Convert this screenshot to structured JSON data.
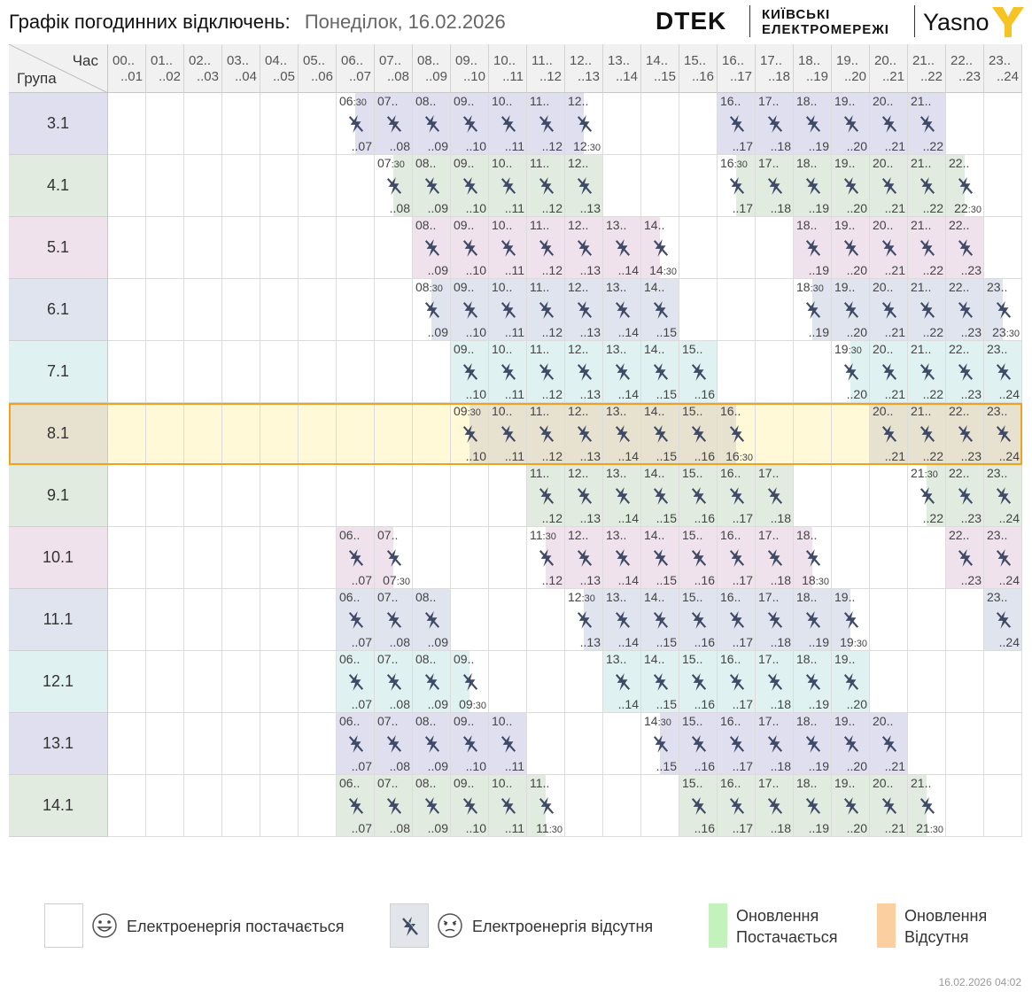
{
  "header": {
    "title": "Графік погодинних відключень:",
    "date": "Понеділок, 16.02.2026"
  },
  "logos": {
    "dtek": "DTEK",
    "kyiv_line1": "КИЇВСЬКІ",
    "kyiv_line2": "ЕЛЕКТРОМЕРЕЖІ",
    "yasno": "Yasno"
  },
  "table": {
    "corner_hour": "Час",
    "corner_group": "Група",
    "hours": [
      {
        "a": "00..",
        "b": "..01"
      },
      {
        "a": "01..",
        "b": "..02"
      },
      {
        "a": "02..",
        "b": "..03"
      },
      {
        "a": "03..",
        "b": "..04"
      },
      {
        "a": "04..",
        "b": "..05"
      },
      {
        "a": "05..",
        "b": "..06"
      },
      {
        "a": "06..",
        "b": "..07"
      },
      {
        "a": "07..",
        "b": "..08"
      },
      {
        "a": "08..",
        "b": "..09"
      },
      {
        "a": "09..",
        "b": "..10"
      },
      {
        "a": "10..",
        "b": "..11"
      },
      {
        "a": "11..",
        "b": "..12"
      },
      {
        "a": "12..",
        "b": "..13"
      },
      {
        "a": "13..",
        "b": "..14"
      },
      {
        "a": "14..",
        "b": "..15"
      },
      {
        "a": "15..",
        "b": "..16"
      },
      {
        "a": "16..",
        "b": "..17"
      },
      {
        "a": "17..",
        "b": "..18"
      },
      {
        "a": "18..",
        "b": "..19"
      },
      {
        "a": "19..",
        "b": "..20"
      },
      {
        "a": "20..",
        "b": "..21"
      },
      {
        "a": "21..",
        "b": "..22"
      },
      {
        "a": "22..",
        "b": "..23"
      },
      {
        "a": "23..",
        "b": "..24"
      }
    ],
    "highlighted_group": "8.1",
    "rows": [
      {
        "group": "3.1",
        "color": "#e0dff0",
        "cells": [
          [
            6,
            "late"
          ],
          [
            7,
            "full"
          ],
          [
            8,
            "full"
          ],
          [
            9,
            "full"
          ],
          [
            10,
            "full"
          ],
          [
            11,
            "full"
          ],
          [
            12,
            "early"
          ],
          [
            16,
            "full"
          ],
          [
            17,
            "full"
          ],
          [
            18,
            "full"
          ],
          [
            19,
            "full"
          ],
          [
            20,
            "full"
          ],
          [
            21,
            "full"
          ]
        ]
      },
      {
        "group": "4.1",
        "color": "#e1ebdf",
        "cells": [
          [
            7,
            "late"
          ],
          [
            8,
            "full"
          ],
          [
            9,
            "full"
          ],
          [
            10,
            "full"
          ],
          [
            11,
            "full"
          ],
          [
            12,
            "full"
          ],
          [
            16,
            "late"
          ],
          [
            17,
            "full"
          ],
          [
            18,
            "full"
          ],
          [
            19,
            "full"
          ],
          [
            20,
            "full"
          ],
          [
            21,
            "full"
          ],
          [
            22,
            "early"
          ]
        ]
      },
      {
        "group": "5.1",
        "color": "#efe2ec",
        "cells": [
          [
            8,
            "full"
          ],
          [
            9,
            "full"
          ],
          [
            10,
            "full"
          ],
          [
            11,
            "full"
          ],
          [
            12,
            "full"
          ],
          [
            13,
            "full"
          ],
          [
            14,
            "early"
          ],
          [
            18,
            "full"
          ],
          [
            19,
            "full"
          ],
          [
            20,
            "full"
          ],
          [
            21,
            "full"
          ],
          [
            22,
            "full"
          ]
        ]
      },
      {
        "group": "6.1",
        "color": "#e0e4ef",
        "cells": [
          [
            8,
            "late"
          ],
          [
            9,
            "full"
          ],
          [
            10,
            "full"
          ],
          [
            11,
            "full"
          ],
          [
            12,
            "full"
          ],
          [
            13,
            "full"
          ],
          [
            14,
            "full"
          ],
          [
            18,
            "late"
          ],
          [
            19,
            "full"
          ],
          [
            20,
            "full"
          ],
          [
            21,
            "full"
          ],
          [
            22,
            "full"
          ],
          [
            23,
            "early"
          ]
        ]
      },
      {
        "group": "7.1",
        "color": "#dff1f0",
        "cells": [
          [
            9,
            "full"
          ],
          [
            10,
            "full"
          ],
          [
            11,
            "full"
          ],
          [
            12,
            "full"
          ],
          [
            13,
            "full"
          ],
          [
            14,
            "full"
          ],
          [
            15,
            "full"
          ],
          [
            19,
            "late"
          ],
          [
            20,
            "full"
          ],
          [
            21,
            "full"
          ],
          [
            22,
            "full"
          ],
          [
            23,
            "full"
          ]
        ]
      },
      {
        "group": "8.1",
        "color": "#e7e1cf",
        "cells": [
          [
            9,
            "late"
          ],
          [
            10,
            "full"
          ],
          [
            11,
            "full"
          ],
          [
            12,
            "full"
          ],
          [
            13,
            "full"
          ],
          [
            14,
            "full"
          ],
          [
            15,
            "full"
          ],
          [
            16,
            "early"
          ],
          [
            20,
            "full"
          ],
          [
            21,
            "full"
          ],
          [
            22,
            "full"
          ],
          [
            23,
            "full"
          ]
        ]
      },
      {
        "group": "9.1",
        "color": "#e1ebdf",
        "cells": [
          [
            11,
            "full"
          ],
          [
            12,
            "full"
          ],
          [
            13,
            "full"
          ],
          [
            14,
            "full"
          ],
          [
            15,
            "full"
          ],
          [
            16,
            "full"
          ],
          [
            17,
            "full"
          ],
          [
            21,
            "late"
          ],
          [
            22,
            "full"
          ],
          [
            23,
            "full"
          ]
        ]
      },
      {
        "group": "10.1",
        "color": "#efe2ec",
        "cells": [
          [
            6,
            "full"
          ],
          [
            7,
            "early"
          ],
          [
            11,
            "late"
          ],
          [
            12,
            "full"
          ],
          [
            13,
            "full"
          ],
          [
            14,
            "full"
          ],
          [
            15,
            "full"
          ],
          [
            16,
            "full"
          ],
          [
            17,
            "full"
          ],
          [
            18,
            "early"
          ],
          [
            22,
            "full"
          ],
          [
            23,
            "full"
          ]
        ]
      },
      {
        "group": "11.1",
        "color": "#e0e4ef",
        "cells": [
          [
            6,
            "full"
          ],
          [
            7,
            "full"
          ],
          [
            8,
            "full"
          ],
          [
            12,
            "late"
          ],
          [
            13,
            "full"
          ],
          [
            14,
            "full"
          ],
          [
            15,
            "full"
          ],
          [
            16,
            "full"
          ],
          [
            17,
            "full"
          ],
          [
            18,
            "full"
          ],
          [
            19,
            "early"
          ],
          [
            23,
            "full"
          ]
        ]
      },
      {
        "group": "12.1",
        "color": "#dff1f0",
        "cells": [
          [
            6,
            "full"
          ],
          [
            7,
            "full"
          ],
          [
            8,
            "full"
          ],
          [
            9,
            "early"
          ],
          [
            13,
            "full"
          ],
          [
            14,
            "full"
          ],
          [
            15,
            "full"
          ],
          [
            16,
            "full"
          ],
          [
            17,
            "full"
          ],
          [
            18,
            "full"
          ],
          [
            19,
            "full"
          ]
        ]
      },
      {
        "group": "13.1",
        "color": "#e0dff0",
        "cells": [
          [
            6,
            "full"
          ],
          [
            7,
            "full"
          ],
          [
            8,
            "full"
          ],
          [
            9,
            "full"
          ],
          [
            10,
            "full"
          ],
          [
            14,
            "late"
          ],
          [
            15,
            "full"
          ],
          [
            16,
            "full"
          ],
          [
            17,
            "full"
          ],
          [
            18,
            "full"
          ],
          [
            19,
            "full"
          ],
          [
            20,
            "full"
          ]
        ]
      },
      {
        "group": "14.1",
        "color": "#e1ebdf",
        "cells": [
          [
            6,
            "full"
          ],
          [
            7,
            "full"
          ],
          [
            8,
            "full"
          ],
          [
            9,
            "full"
          ],
          [
            10,
            "full"
          ],
          [
            11,
            "early"
          ],
          [
            15,
            "full"
          ],
          [
            16,
            "full"
          ],
          [
            17,
            "full"
          ],
          [
            18,
            "full"
          ],
          [
            19,
            "full"
          ],
          [
            20,
            "full"
          ],
          [
            21,
            "early"
          ]
        ]
      }
    ]
  },
  "legend": {
    "supplied": "Електроенергія постачається",
    "absent": "Електроенергія відсутня",
    "update_supplied_1": "Оновлення",
    "update_supplied_2": "Постачається",
    "update_absent_1": "Оновлення",
    "update_absent_2": "Відсутня",
    "colors": {
      "absent_box": "#e2e6ea",
      "update_supplied": "#c4f2bc",
      "update_absent": "#fbcf9f",
      "highlight": "#fff9d8",
      "highlight_border": "#f0a11e"
    }
  },
  "footer": {
    "timestamp": "16.02.2026   04:02"
  }
}
